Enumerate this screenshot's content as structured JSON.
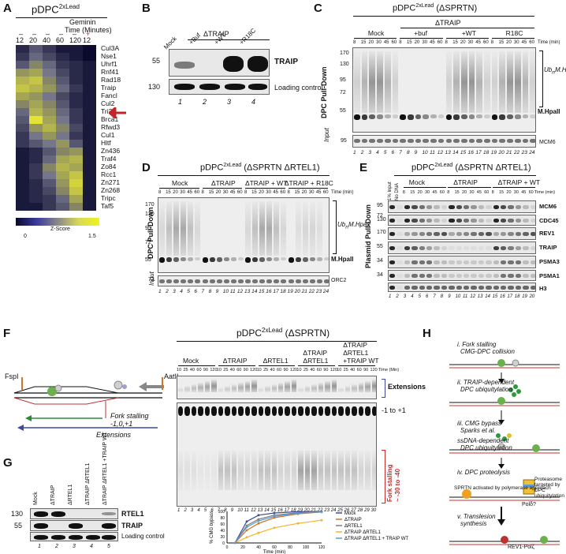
{
  "panelA": {
    "label": "A",
    "title": "pDPC",
    "title_sup": "2xLead",
    "geminin_label": "Geminin",
    "geminin_signs": [
      "–",
      "–",
      "–",
      "–",
      "–",
      "+"
    ],
    "time_label": "Time (Minutes)",
    "times": [
      "12",
      "20",
      "40",
      "60",
      "120",
      "12"
    ],
    "genes": [
      "Cul3A",
      "Nse1",
      "Uhrf1",
      "Rnf41",
      "Rad18",
      "Traip",
      "Fancl",
      "Cul2",
      "Tri33",
      "Brca1",
      "Rfwd3",
      "Cul1",
      "Hltf",
      "Zn436",
      "Traf4",
      "Zo84",
      "Rcc1",
      "Zn271",
      "Zn268",
      "Tripc",
      "Taf5"
    ],
    "zscore_label": "Z-Score",
    "zscore_min": "0",
    "zscore_max": "1.5",
    "heat": [
      [
        0.2,
        0.5,
        0.3,
        0.1,
        0.1,
        0.0
      ],
      [
        0.3,
        0.6,
        0.4,
        0.2,
        0.1,
        0.0
      ],
      [
        0.5,
        0.8,
        0.6,
        0.3,
        0.2,
        0.1
      ],
      [
        0.9,
        1.0,
        0.7,
        0.4,
        0.2,
        0.1
      ],
      [
        1.1,
        1.2,
        0.8,
        0.5,
        0.2,
        0.1
      ],
      [
        1.2,
        1.1,
        0.9,
        0.6,
        0.3,
        0.1
      ],
      [
        1.0,
        0.9,
        0.7,
        0.4,
        0.2,
        0.1
      ],
      [
        0.8,
        1.0,
        0.8,
        0.5,
        0.2,
        0.1
      ],
      [
        0.6,
        1.1,
        0.9,
        0.6,
        0.3,
        0.1
      ],
      [
        0.5,
        1.4,
        1.0,
        0.7,
        0.3,
        0.1
      ],
      [
        0.4,
        0.9,
        1.1,
        0.8,
        0.4,
        0.1
      ],
      [
        0.3,
        0.7,
        0.9,
        0.7,
        0.3,
        0.1
      ],
      [
        0.3,
        0.5,
        0.7,
        0.9,
        0.5,
        0.1
      ],
      [
        0.1,
        0.2,
        0.5,
        0.8,
        0.9,
        0.1
      ],
      [
        0.1,
        0.2,
        0.6,
        1.0,
        1.1,
        0.1
      ],
      [
        0.1,
        0.3,
        0.8,
        1.1,
        1.0,
        0.1
      ],
      [
        0.1,
        0.3,
        0.7,
        1.0,
        1.2,
        0.1
      ],
      [
        0.1,
        0.2,
        0.5,
        0.9,
        1.3,
        0.1
      ],
      [
        0.1,
        0.2,
        0.4,
        0.8,
        1.2,
        0.1
      ],
      [
        0.1,
        0.2,
        0.3,
        0.6,
        1.0,
        0.1
      ],
      [
        0.1,
        0.1,
        0.3,
        0.5,
        0.8,
        0.1
      ]
    ],
    "arrow_color": "#c0262c"
  },
  "panelB": {
    "label": "B",
    "header": "ΔTRAIP",
    "lanes": [
      "Mock",
      "+Buf",
      "+WT",
      "+R18C"
    ],
    "mw": [
      "55",
      "130"
    ],
    "bands": [
      "TRAIP",
      "Loading control"
    ],
    "lane_numbers": [
      "1",
      "2",
      "3",
      "4"
    ],
    "traip_levels": [
      0.3,
      0.0,
      1.0,
      1.0
    ]
  },
  "panelC": {
    "label": "C",
    "title": "pDPC",
    "title_sup": "2xLead",
    "title_suffix": " (ΔSPRTN)",
    "group_top": "ΔTRAIP",
    "groups": [
      "Mock",
      "+buf",
      "+WT",
      "R18C"
    ],
    "times": [
      "8",
      "15",
      "20",
      "30",
      "45",
      "60"
    ],
    "time_unit": "Time (min)",
    "mw": [
      "170",
      "130",
      "95",
      "72",
      "55"
    ],
    "side": "DPC Pull-Down",
    "ub_label": "Ub",
    "ub_sub": "n",
    "ub_rest": "M.HpaII",
    "band_label": "M.HpaII",
    "input_label": "Input",
    "input_mw": "95",
    "input_band": "MCM6",
    "lanes": [
      "1",
      "2",
      "3",
      "4",
      "5",
      "6",
      "7",
      "8",
      "9",
      "10",
      "11",
      "12",
      "13",
      "14",
      "15",
      "16",
      "17",
      "18",
      "19",
      "20",
      "21",
      "22",
      "23",
      "24"
    ],
    "smear_groups": [
      0.9,
      0.1,
      0.9,
      0.9
    ]
  },
  "panelD": {
    "label": "D",
    "title": "pDPC",
    "title_sup": "2xLead",
    "title_suffix": " (ΔSPRTN  ΔRTEL1)",
    "groups": [
      "Mock",
      "ΔTRAIP",
      "ΔTRAIP + WT",
      "ΔTRAIP + R18C"
    ],
    "times": [
      "8",
      "15",
      "20",
      "30",
      "45",
      "60"
    ],
    "time_unit": "Time (min)",
    "mw": [
      "170",
      "130",
      "95",
      "72",
      "55"
    ],
    "side": "DPC Pull-Down",
    "ub_label": "Ub",
    "ub_sub": "n",
    "ub_rest": "M.HpaII",
    "band_label": "M.HpaII",
    "input_label": "Input",
    "input_mw": "72",
    "input_band": "ORC2",
    "lanes": [
      "1",
      "2",
      "3",
      "4",
      "5",
      "6",
      "7",
      "8",
      "9",
      "10",
      "11",
      "12",
      "13",
      "14",
      "15",
      "16",
      "17",
      "18",
      "19",
      "20",
      "21",
      "22",
      "23",
      "24"
    ],
    "smear_groups": [
      0.7,
      0.1,
      0.7,
      0.25
    ]
  },
  "panelE": {
    "label": "E",
    "title": "pDPC",
    "title_sup": "2xLead",
    "title_suffix": " (ΔSPRTN  ΔRTEL1)",
    "first_lanes": [
      "1% Input",
      "No DNA"
    ],
    "groups": [
      "Mock",
      "ΔTRAIP",
      "ΔTRAIP + WT"
    ],
    "times": [
      "8",
      "15",
      "20",
      "30",
      "45",
      "60"
    ],
    "time_unit": "Time (min)",
    "side": "Plasmid Pull-Down",
    "rows": [
      {
        "mw": "95",
        "name": "MCM6"
      },
      {
        "mw": "130",
        "name": "CDC45"
      },
      {
        "mw": "170",
        "name": "REV1"
      },
      {
        "mw": "55",
        "name": "TRAIP"
      },
      {
        "mw": "34",
        "name": "PSMA3"
      },
      {
        "mw": "34",
        "name": "PSMA1"
      },
      {
        "mw": "",
        "name": "H3"
      }
    ],
    "mw_top": "72",
    "lanes": [
      "1",
      "2",
      "3",
      "4",
      "5",
      "6",
      "7",
      "8",
      "9",
      "10",
      "11",
      "12",
      "13",
      "14",
      "15",
      "16",
      "17",
      "18",
      "19",
      "20"
    ]
  },
  "panelF": {
    "label": "F",
    "title": "pDPC",
    "title_sup": "2xLead",
    "title_suffix": " (ΔSPRTN)",
    "groups": [
      "Mock",
      "ΔTRAIP",
      "ΔRTEL1",
      "ΔTRAIP ΔRTEL1",
      "ΔTRAIP ΔRTEL1 +TRAIP WT"
    ],
    "times": [
      "10",
      "25",
      "40",
      "60",
      "90",
      "120"
    ],
    "time_unit": "Time (Min)",
    "extensions": "Extensions",
    "pm1": "-1 to +1",
    "fork_stalling": "Fork stalling",
    "fork_range": "~ -30 to -40",
    "enzyme_left": "FspI",
    "enzyme_right": "AatII",
    "schematic_fork": "Fork stalling",
    "schematic_fork2": "-1,0,+1",
    "schematic_ext": "Extensions",
    "lanes": [
      "1",
      "2",
      "3",
      "4",
      "5",
      "6",
      "7",
      "8",
      "9",
      "10",
      "11",
      "12",
      "13",
      "14",
      "15",
      "16",
      "17",
      "18",
      "19",
      "20",
      "21",
      "22",
      "23",
      "24",
      "25",
      "26",
      "27",
      "28",
      "29",
      "30"
    ]
  },
  "panelG": {
    "label": "G",
    "lanes": [
      "Mock",
      "ΔTRAIP",
      "ΔRTEL1",
      "ΔTRAIP ΔRTEL1",
      "ΔTRAIP ΔRTEL1 +TRAIP WT"
    ],
    "mw": [
      "130",
      "55"
    ],
    "bands": [
      "RTEL1",
      "TRAIP",
      "Loading control"
    ],
    "lane_numbers": [
      "1",
      "2",
      "3",
      "4",
      "5"
    ]
  },
  "chart_data": {
    "type": "line",
    "title": "",
    "xlabel": "Time (min)",
    "ylabel": "% CMG bypass",
    "xlim": [
      0,
      120
    ],
    "ylim": [
      0,
      100
    ],
    "x_ticks": [
      "0",
      "20",
      "40",
      "60",
      "80",
      "100",
      "120"
    ],
    "y_ticks": [
      "0",
      "20",
      "40",
      "60",
      "80",
      "100"
    ],
    "legend_position": "right",
    "series": [
      {
        "name": "Mock",
        "color": "#3b4a9a",
        "x": [
          10,
          25,
          40,
          60,
          90,
          120
        ],
        "y": [
          0,
          68,
          88,
          95,
          99,
          100
        ]
      },
      {
        "name": "ΔTRAIP",
        "color": "#d4722a",
        "x": [
          10,
          25,
          40,
          60,
          90,
          120
        ],
        "y": [
          0,
          40,
          62,
          80,
          92,
          98
        ]
      },
      {
        "name": "ΔRTEL1",
        "color": "#7f7f7f",
        "x": [
          10,
          25,
          40,
          60,
          90,
          120
        ],
        "y": [
          0,
          55,
          75,
          88,
          96,
          99
        ]
      },
      {
        "name": "ΔTRAIP ΔRTEL1",
        "color": "#f2b42c",
        "x": [
          10,
          25,
          40,
          60,
          90,
          120
        ],
        "y": [
          0,
          18,
          32,
          48,
          62,
          72
        ]
      },
      {
        "name": "ΔTRAIP ΔRTEL1 + TRAIP WT",
        "color": "#5b9bd5",
        "x": [
          10,
          25,
          40,
          60,
          90,
          120
        ],
        "y": [
          0,
          50,
          70,
          84,
          94,
          98
        ]
      }
    ]
  },
  "panelH": {
    "label": "H",
    "steps": [
      {
        "title": "i. Fork stalling",
        "sub": "CMG-DPC collision"
      },
      {
        "title": "ii. TRAIP-dependent",
        "sub": "DPC ubiquitylation"
      },
      {
        "title": "iii. CMG bypass",
        "sub": "Sparks et al.",
        "title2": "ssDNA-dependent",
        "sub2": "DPC ubiquitylation"
      },
      {
        "title": "iv. DPC proteolysis",
        "sub": ""
      },
      {
        "title": "v. Translesion",
        "sub": "synthesis"
      }
    ],
    "sprtn": "SPRTN activated by polymerase approach",
    "proteasome": "Proteasome targeted by DPC ubiquitylation",
    "pol_delta": "Polδ?",
    "rev1": "REV1-Polζ"
  }
}
